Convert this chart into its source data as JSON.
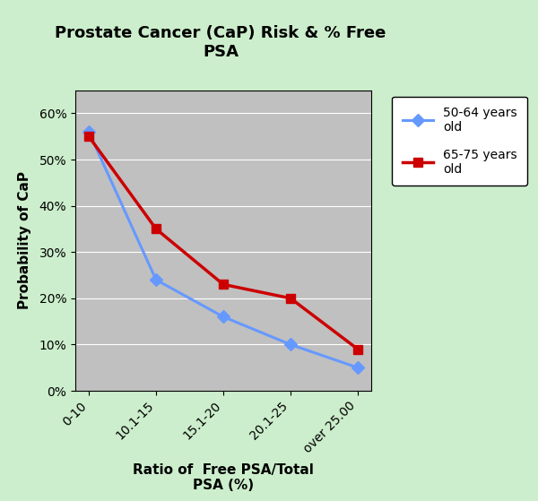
{
  "title": "Prostate Cancer (CaP) Risk & % Free\nPSA",
  "xlabel": "Ratio of  Free PSA/Total\nPSA (%)",
  "ylabel": "Probability of CaP",
  "categories": [
    "0-10",
    "10.1-15",
    "15.1-20",
    "20.1-25",
    "over 25.00"
  ],
  "series": [
    {
      "label": "50-64 years\nold",
      "values": [
        0.56,
        0.24,
        0.16,
        0.1,
        0.05
      ],
      "color": "#6699FF",
      "marker": "D",
      "linewidth": 2.2,
      "markersize": 7
    },
    {
      "label": "65-75 years\nold",
      "values": [
        0.55,
        0.35,
        0.23,
        0.2,
        0.09
      ],
      "color": "#CC0000",
      "marker": "s",
      "linewidth": 2.5,
      "markersize": 7
    }
  ],
  "ylim": [
    0,
    0.65
  ],
  "yticks": [
    0.0,
    0.1,
    0.2,
    0.3,
    0.4,
    0.5,
    0.6
  ],
  "background_color": "#CCEECC",
  "plot_bg_color": "#C0C0C0",
  "title_fontsize": 13,
  "axis_label_fontsize": 11,
  "tick_fontsize": 10,
  "legend_fontsize": 10
}
